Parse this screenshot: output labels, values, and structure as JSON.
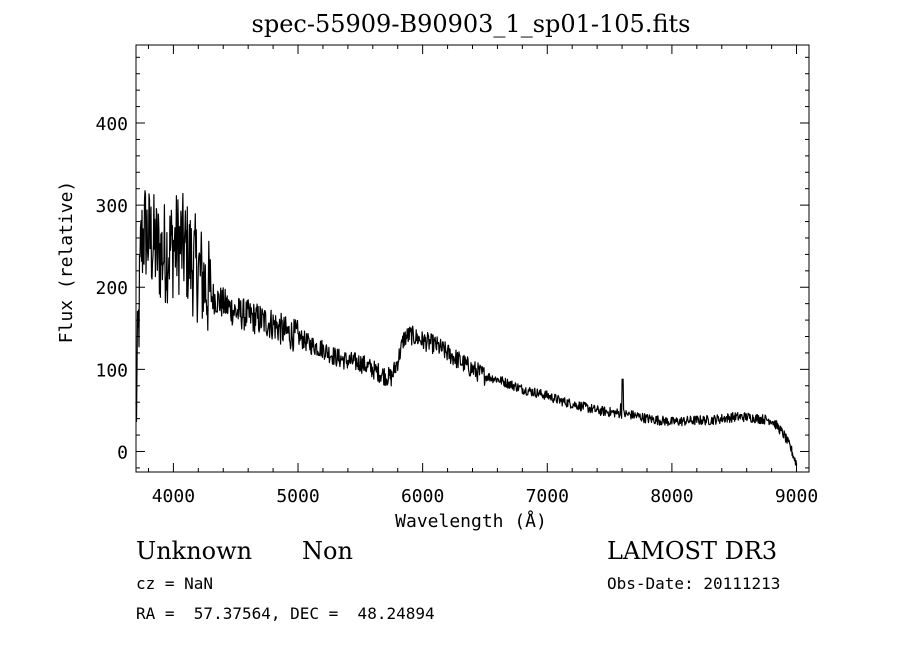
{
  "chart_data": {
    "type": "line",
    "title": "spec-55909-B90903_1_sp01-105.fits",
    "xlabel": "Wavelength (Å)",
    "ylabel": "Flux (relative)",
    "xlim": [
      3700,
      9100
    ],
    "ylim": [
      -25,
      495
    ],
    "xticks": [
      4000,
      5000,
      6000,
      7000,
      8000,
      9000
    ],
    "yticks": [
      0,
      100,
      200,
      300,
      400
    ],
    "anchors": [
      [
        3700,
        40
      ],
      [
        3720,
        150
      ],
      [
        3740,
        250
      ],
      [
        3770,
        270
      ],
      [
        3800,
        260
      ],
      [
        3850,
        250
      ],
      [
        3900,
        240
      ],
      [
        3950,
        245
      ],
      [
        4000,
        250
      ],
      [
        4050,
        255
      ],
      [
        4100,
        245
      ],
      [
        4150,
        230
      ],
      [
        4200,
        220
      ],
      [
        4250,
        205
      ],
      [
        4300,
        190
      ],
      [
        4400,
        180
      ],
      [
        4500,
        170
      ],
      [
        4600,
        165
      ],
      [
        4700,
        160
      ],
      [
        4800,
        155
      ],
      [
        4900,
        145
      ],
      [
        5000,
        140
      ],
      [
        5100,
        130
      ],
      [
        5200,
        125
      ],
      [
        5300,
        115
      ],
      [
        5400,
        110
      ],
      [
        5500,
        108
      ],
      [
        5600,
        100
      ],
      [
        5700,
        92
      ],
      [
        5750,
        90
      ],
      [
        5800,
        110
      ],
      [
        5850,
        138
      ],
      [
        5900,
        142
      ],
      [
        6000,
        135
      ],
      [
        6100,
        130
      ],
      [
        6200,
        120
      ],
      [
        6300,
        110
      ],
      [
        6400,
        100
      ],
      [
        6500,
        92
      ],
      [
        6600,
        88
      ],
      [
        6700,
        82
      ],
      [
        6800,
        76
      ],
      [
        6900,
        72
      ],
      [
        7000,
        68
      ],
      [
        7100,
        62
      ],
      [
        7200,
        58
      ],
      [
        7300,
        54
      ],
      [
        7400,
        50
      ],
      [
        7500,
        48
      ],
      [
        7600,
        46
      ],
      [
        7700,
        44
      ],
      [
        7800,
        40
      ],
      [
        7900,
        38
      ],
      [
        8000,
        36
      ],
      [
        8100,
        37
      ],
      [
        8200,
        38
      ],
      [
        8300,
        38
      ],
      [
        8400,
        40
      ],
      [
        8500,
        42
      ],
      [
        8600,
        42
      ],
      [
        8700,
        40
      ],
      [
        8800,
        38
      ],
      [
        8850,
        30
      ],
      [
        8900,
        20
      ],
      [
        8950,
        5
      ],
      [
        9000,
        -15
      ]
    ],
    "features": [
      {
        "x": 7605,
        "y": 88
      },
      {
        "x": 7590,
        "y": 58
      }
    ],
    "noise": [
      {
        "from": 3700,
        "to": 4300,
        "amplitude": 65
      },
      {
        "from": 4300,
        "to": 5000,
        "amplitude": 20
      },
      {
        "from": 5000,
        "to": 6500,
        "amplitude": 12
      },
      {
        "from": 6500,
        "to": 9100,
        "amplitude": 6
      }
    ]
  },
  "footer": {
    "object_class": "Unknown",
    "object_subclass": "Non",
    "cz": "cz = NaN",
    "coords": "RA =  57.37564, DEC =  48.24894",
    "survey": "LAMOST DR3",
    "obs_date": "Obs-Date: 20111213"
  }
}
